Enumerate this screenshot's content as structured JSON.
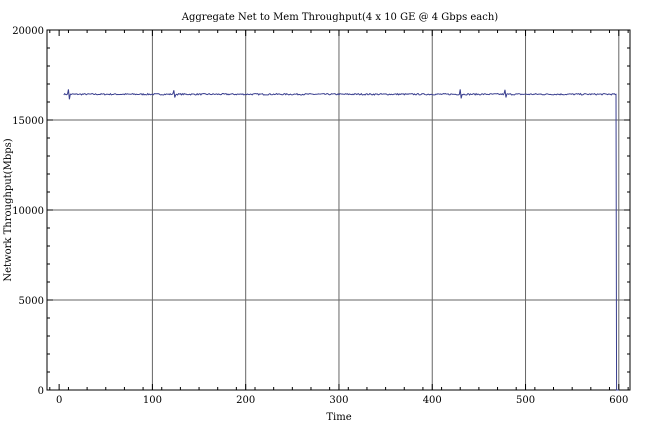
{
  "chart_data": {
    "type": "line",
    "title": "Aggregate Net to Mem  Throughput(4 x 10 GE @ 4 Gbps each)",
    "xlabel": "Time",
    "ylabel": "Network Throughput(Mbps)",
    "xlim": [
      -13,
      612
    ],
    "ylim": [
      0,
      20000
    ],
    "xticks": [
      0,
      100,
      200,
      300,
      400,
      500,
      600
    ],
    "yticks": [
      0,
      5000,
      10000,
      15000,
      20000
    ],
    "xtick_labels": [
      "0",
      "100",
      "200",
      "300",
      "400",
      "500",
      "600"
    ],
    "ytick_labels": [
      "0",
      "5000",
      "10000",
      "15000",
      "20000"
    ],
    "grid": true,
    "legend": "none",
    "color": "#3a3f8f",
    "series": [
      {
        "x_start": 5,
        "x_step": 1,
        "baseline": 16430,
        "noise_amplitude": 40,
        "spikes": [
          {
            "x": 10,
            "y": 16700
          },
          {
            "x": 11,
            "y": 16150
          },
          {
            "x": 123,
            "y": 16650
          },
          {
            "x": 124,
            "y": 16250
          },
          {
            "x": 430,
            "y": 16700
          },
          {
            "x": 431,
            "y": 16200
          },
          {
            "x": 478,
            "y": 16680
          },
          {
            "x": 479,
            "y": 16250
          }
        ],
        "end_x": 596,
        "drop": [
          {
            "x": 597,
            "y": 16430
          },
          {
            "x": 597.6,
            "y": 0
          },
          {
            "x": 600,
            "y": 0
          }
        ]
      }
    ]
  }
}
